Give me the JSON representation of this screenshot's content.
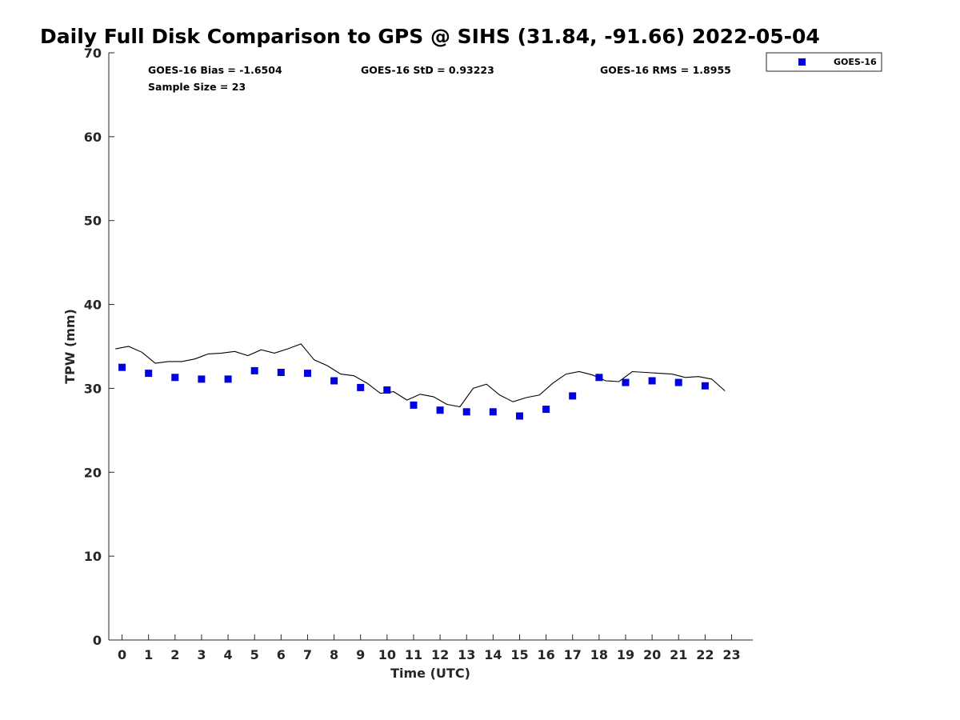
{
  "colors": {
    "marker": "#0000e0",
    "line": "#000000",
    "axis": "#262626",
    "background": "#ffffff"
  },
  "chart_data": {
    "type": "scatter",
    "title": "Daily Full Disk Comparison to GPS @ SIHS (31.84, -91.66) 2022-05-04",
    "xlabel": "Time (UTC)",
    "ylabel": "TPW (mm)",
    "xlim": [
      -0.5,
      23.8
    ],
    "ylim": [
      0,
      70
    ],
    "xticks": [
      "0",
      "1",
      "2",
      "3",
      "4",
      "5",
      "6",
      "7",
      "8",
      "9",
      "10",
      "11",
      "12",
      "13",
      "14",
      "15",
      "16",
      "17",
      "18",
      "19",
      "20",
      "21",
      "22",
      "23"
    ],
    "yticks": [
      "0",
      "10",
      "20",
      "30",
      "40",
      "50",
      "60",
      "70"
    ],
    "grid": false,
    "legend_position": "outside-top-right",
    "stats": {
      "bias": "GOES-16 Bias = -1.6504",
      "std": "GOES-16 StD = 0.93223",
      "rms": "GOES-16 RMS = 1.8955",
      "sample": "Sample Size = 23"
    },
    "series": [
      {
        "name": "GOES-16",
        "kind": "marker",
        "x": [
          0,
          1,
          2,
          3,
          4,
          5,
          6,
          7,
          8,
          9,
          10,
          11,
          12,
          13,
          14,
          15,
          16,
          17,
          18,
          19,
          20,
          21,
          22
        ],
        "y": [
          32.5,
          31.8,
          31.3,
          31.1,
          31.1,
          32.1,
          31.9,
          31.8,
          30.9,
          30.1,
          29.8,
          28.0,
          27.4,
          27.2,
          27.2,
          26.7,
          27.5,
          29.1,
          31.3,
          30.7,
          30.9,
          30.7,
          30.3
        ]
      },
      {
        "kind": "line",
        "x": [
          -0.25,
          0.25,
          0.75,
          1.25,
          1.75,
          2.25,
          2.75,
          3.25,
          3.75,
          4.25,
          4.75,
          5.25,
          5.75,
          6.25,
          6.75,
          7.25,
          7.75,
          8.25,
          8.75,
          9.25,
          9.75,
          10.25,
          10.75,
          11.25,
          11.75,
          12.25,
          12.75,
          13.25,
          13.75,
          14.25,
          14.75,
          15.25,
          15.75,
          16.25,
          16.75,
          17.25,
          17.75,
          18.25,
          18.75,
          19.25,
          19.75,
          20.25,
          20.75,
          21.25,
          21.75,
          22.25,
          22.75
        ],
        "y": [
          34.7,
          35.0,
          34.3,
          33.0,
          33.2,
          33.2,
          33.5,
          34.1,
          34.2,
          34.4,
          33.9,
          34.6,
          34.2,
          34.7,
          35.3,
          33.4,
          32.7,
          31.7,
          31.5,
          30.6,
          29.4,
          29.6,
          28.6,
          29.3,
          29.0,
          28.1,
          27.8,
          30.0,
          30.5,
          29.2,
          28.4,
          28.9,
          29.2,
          30.6,
          31.7,
          32.0,
          31.6,
          30.9,
          30.8,
          32.0,
          31.9,
          31.8,
          31.7,
          31.3,
          31.4,
          31.1,
          29.7
        ]
      }
    ]
  }
}
